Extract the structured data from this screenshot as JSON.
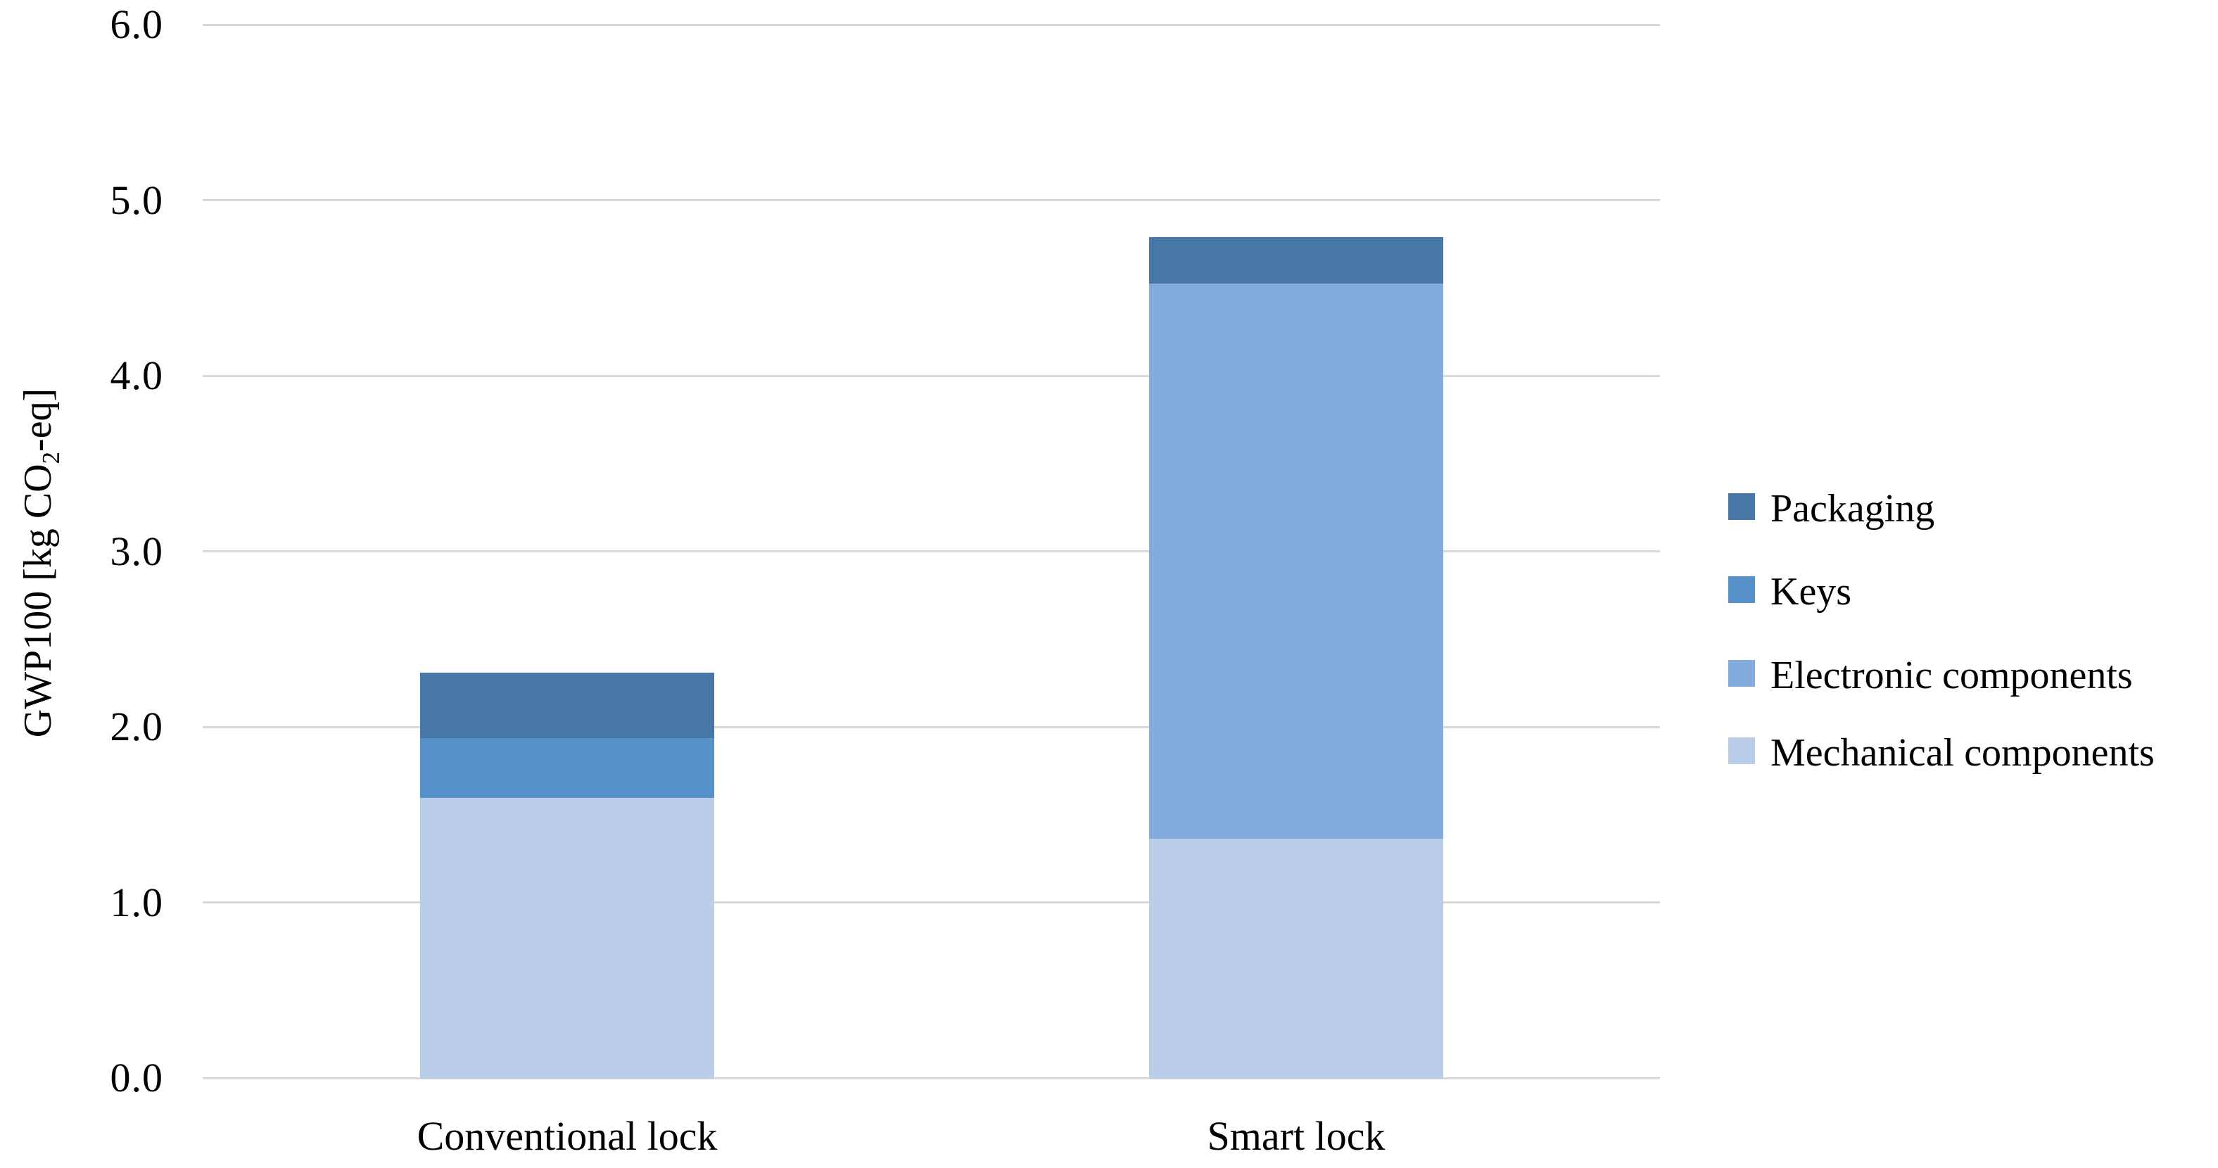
{
  "figure": {
    "background": "#FFFFFF",
    "text_color": "#000000"
  },
  "chart_data": {
    "type": "bar",
    "stacked": true,
    "title": "",
    "xlabel": "",
    "ylabel": "GWP100 [kg CO2-eq]",
    "ylabel_parts": {
      "prefix": "GWP100 [kg CO",
      "sub": "2",
      "suffix": "-eq]"
    },
    "categories": [
      "Conventional lock",
      "Smart lock"
    ],
    "series": [
      {
        "name": "Mechanical components",
        "color": "#BACEEA",
        "values": [
          1.6,
          1.37
        ]
      },
      {
        "name": "Electronic components",
        "color": "#83ACDC",
        "values": [
          0.0,
          3.16
        ]
      },
      {
        "name": "Keys",
        "color": "#5692C9",
        "values": [
          0.34,
          0.0
        ]
      },
      {
        "name": "Packaging",
        "color": "#4777A7",
        "values": [
          0.37,
          0.26
        ]
      }
    ],
    "totals": [
      2.31,
      4.79
    ],
    "ylim": [
      0,
      6
    ],
    "ytick_step": 1.0,
    "yticks": [
      "0.0",
      "1.0",
      "2.0",
      "3.0",
      "4.0",
      "5.0",
      "6.0"
    ],
    "grid": "horizontal",
    "gridline_color": "#D9D9D9",
    "legend": {
      "position": "right",
      "items": [
        {
          "label": "Packaging",
          "color": "#4777A7"
        },
        {
          "label": "Keys",
          "color": "#5692C9"
        },
        {
          "label": "Electronic components",
          "color": "#83ACDC"
        },
        {
          "label": "Mechanical components",
          "color": "#BACEEA"
        }
      ]
    }
  }
}
